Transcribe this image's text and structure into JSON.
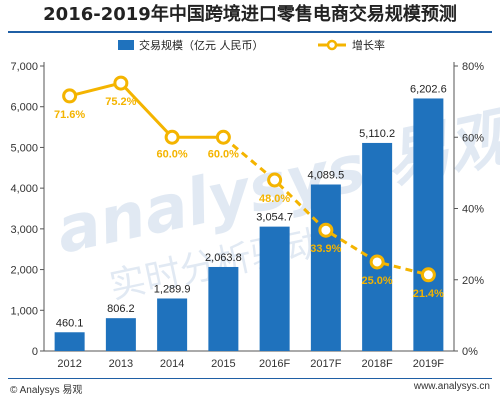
{
  "header": {
    "title": "2016-2019年中国跨境进口零售电商交易规模预测"
  },
  "footer": {
    "left": "© Analysys 易观",
    "right": "www.analysys.cn"
  },
  "watermark": {
    "logo": "Analysys 易观",
    "subtitle": "实时分析驱动"
  },
  "colors": {
    "bar": "#1f72bd",
    "line": "#f4b400",
    "line_marker_fill": "#ffffff",
    "label_line": "#f4b400",
    "axis": "#555555"
  },
  "chart_data": {
    "type": "bar",
    "categories": [
      "2012",
      "2013",
      "2014",
      "2015",
      "2016F",
      "2017F",
      "2018F",
      "2019F"
    ],
    "series": [
      {
        "name": "交易规模（亿元 人民币）",
        "type": "bar",
        "axis": "left",
        "values": [
          460.1,
          806.2,
          1289.9,
          2063.8,
          3054.7,
          4089.5,
          5110.2,
          6202.6
        ],
        "labels": [
          "460.1",
          "806.2",
          "1,289.9",
          "2,063.8",
          "3,054.7",
          "4,089.5",
          "5,110.2",
          "6,202.6"
        ]
      },
      {
        "name": "增长率",
        "type": "line",
        "axis": "right",
        "values": [
          71.6,
          75.2,
          60.0,
          60.0,
          48.0,
          33.9,
          25.0,
          21.4
        ],
        "labels": [
          "71.6%",
          "75.2%",
          "60.0%",
          "60.0%",
          "48.0%",
          "33.9%",
          "25.0%",
          "21.4%"
        ],
        "dashed_from_index": 3
      }
    ],
    "y_left": {
      "min": 0,
      "max": 7000,
      "ticks": [
        0,
        1000,
        2000,
        3000,
        4000,
        5000,
        6000,
        7000
      ],
      "tick_labels": [
        "0",
        "1,000",
        "2,000",
        "3,000",
        "4,000",
        "5,000",
        "6,000",
        "7,000"
      ]
    },
    "y_right": {
      "min": 0,
      "max": 80,
      "ticks": [
        0,
        20,
        40,
        60,
        80
      ],
      "tick_labels": [
        "0%",
        "20%",
        "40%",
        "60%",
        "80%"
      ]
    },
    "legend_position": "top",
    "grid": false
  }
}
